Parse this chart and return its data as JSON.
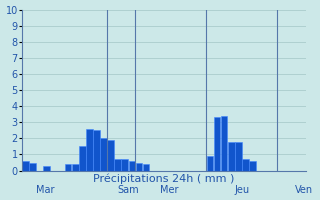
{
  "title": "",
  "xlabel": "Précipitations 24h ( mm )",
  "ylabel": "",
  "ylim": [
    0,
    10
  ],
  "yticks": [
    0,
    1,
    2,
    3,
    4,
    5,
    6,
    7,
    8,
    9,
    10
  ],
  "background_color": "#cce8e8",
  "grid_color": "#aacccc",
  "bar_color": "#1155cc",
  "bar_edge_color": "#4488ff",
  "day_labels": [
    "Mar",
    "Sam",
    "Mer",
    "Jeu",
    "Ven"
  ],
  "num_bars": 40,
  "bar_values": [
    0.6,
    0.5,
    0.0,
    0.3,
    0.0,
    0.0,
    0.4,
    0.4,
    1.5,
    2.6,
    2.5,
    2.0,
    1.9,
    0.7,
    0.7,
    0.6,
    0.5,
    0.4,
    0.0,
    0.0,
    0.0,
    0.0,
    0.0,
    0.0,
    0.0,
    0.0,
    0.9,
    3.3,
    3.4,
    1.8,
    1.8,
    0.7,
    0.6,
    0.0,
    0.0,
    0.0,
    0.0,
    0.0,
    0.0,
    0.0
  ],
  "xlabel_fontsize": 8,
  "tick_fontsize": 7,
  "day_label_fontsize": 7,
  "line_color": "#5577aa",
  "text_color": "#2255aa"
}
